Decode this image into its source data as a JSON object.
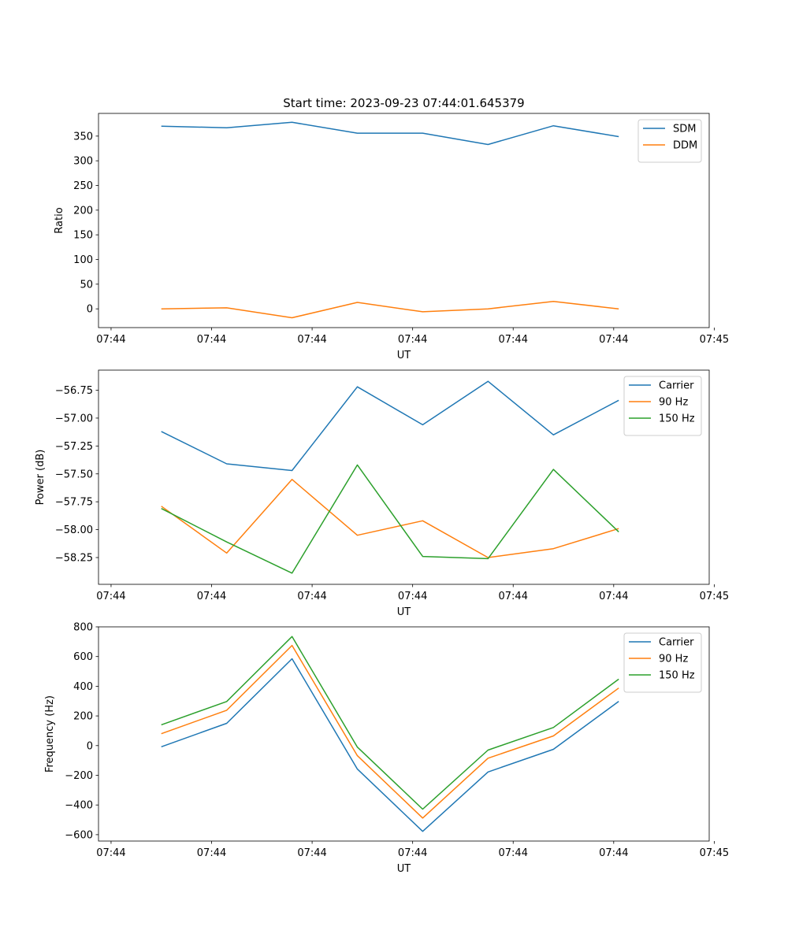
{
  "figure_title": "Start time: 2023-09-23 07:44:01.645379",
  "chart_data": [
    {
      "type": "line",
      "title": "Start time: 2023-09-23 07:44:01.645379",
      "xlabel": "UT",
      "ylabel": "Ratio",
      "x": [
        0.5,
        1.15,
        1.8,
        2.45,
        3.1,
        3.75,
        4.4,
        5.05
      ],
      "xlim": [
        -0.125,
        5.95
      ],
      "xticks": [
        0,
        1,
        2,
        3,
        4,
        5,
        6
      ],
      "xtick_labels": [
        "07:44",
        "07:44",
        "07:44",
        "07:44",
        "07:44",
        "07:44",
        "07:45"
      ],
      "ylim": [
        -38,
        396
      ],
      "yticks": [
        0,
        50,
        100,
        150,
        200,
        250,
        300,
        350
      ],
      "ytick_labels": [
        "0",
        "50",
        "100",
        "150",
        "200",
        "250",
        "300",
        "350"
      ],
      "legend_loc": "top-right",
      "series": [
        {
          "name": "SDM",
          "color": "#1f77b4",
          "values": [
            370,
            367,
            378,
            356,
            356,
            333,
            371,
            349
          ]
        },
        {
          "name": "DDM",
          "color": "#ff7f0e",
          "values": [
            0,
            2,
            -18,
            13,
            -6,
            0,
            15,
            0
          ]
        }
      ]
    },
    {
      "type": "line",
      "title": "",
      "xlabel": "UT",
      "ylabel": "Power (dB)",
      "x": [
        0.5,
        1.15,
        1.8,
        2.45,
        3.1,
        3.75,
        4.4,
        5.05
      ],
      "xlim": [
        -0.125,
        5.95
      ],
      "xticks": [
        0,
        1,
        2,
        3,
        4,
        5,
        6
      ],
      "xtick_labels": [
        "07:44",
        "07:44",
        "07:44",
        "07:44",
        "07:44",
        "07:44",
        "07:45"
      ],
      "ylim": [
        -58.49,
        -56.57
      ],
      "yticks": [
        -58.25,
        -58.0,
        -57.75,
        -57.5,
        -57.25,
        -57.0,
        -56.75
      ],
      "ytick_labels": [
        "−58.25",
        "−58.00",
        "−57.75",
        "−57.50",
        "−57.25",
        "−57.00",
        "−56.75"
      ],
      "legend_loc": "top-right",
      "series": [
        {
          "name": "Carrier",
          "color": "#1f77b4",
          "values": [
            -57.12,
            -57.41,
            -57.47,
            -56.72,
            -57.06,
            -56.67,
            -57.15,
            -56.84
          ]
        },
        {
          "name": "90 Hz",
          "color": "#ff7f0e",
          "values": [
            -57.79,
            -58.21,
            -57.55,
            -58.05,
            -57.92,
            -58.25,
            -58.17,
            -57.99
          ]
        },
        {
          "name": "150 Hz",
          "color": "#2ca02c",
          "values": [
            -57.81,
            -58.11,
            -58.39,
            -57.42,
            -58.24,
            -58.26,
            -57.46,
            -58.02
          ]
        }
      ]
    },
    {
      "type": "line",
      "title": "",
      "xlabel": "UT",
      "ylabel": "Frequency (Hz)",
      "x": [
        0.5,
        1.15,
        1.8,
        2.45,
        3.1,
        3.75,
        4.4,
        5.05
      ],
      "xlim": [
        -0.125,
        5.95
      ],
      "xticks": [
        0,
        1,
        2,
        3,
        4,
        5,
        6
      ],
      "xtick_labels": [
        "07:44",
        "07:44",
        "07:44",
        "07:44",
        "07:44",
        "07:44",
        "07:45"
      ],
      "ylim": [
        -643,
        800
      ],
      "yticks": [
        -600,
        -400,
        -200,
        0,
        200,
        400,
        600,
        800
      ],
      "ytick_labels": [
        "−600",
        "−400",
        "−200",
        "0",
        "200",
        "400",
        "600",
        "800"
      ],
      "legend_loc": "top-right",
      "series": [
        {
          "name": "Carrier",
          "color": "#1f77b4",
          "values": [
            -8,
            150,
            585,
            -158,
            -578,
            -178,
            -25,
            298
          ]
        },
        {
          "name": "90 Hz",
          "color": "#ff7f0e",
          "values": [
            80,
            238,
            675,
            -68,
            -488,
            -85,
            65,
            388
          ]
        },
        {
          "name": "150 Hz",
          "color": "#2ca02c",
          "values": [
            140,
            297,
            735,
            -10,
            -428,
            -30,
            122,
            448
          ]
        }
      ]
    }
  ]
}
